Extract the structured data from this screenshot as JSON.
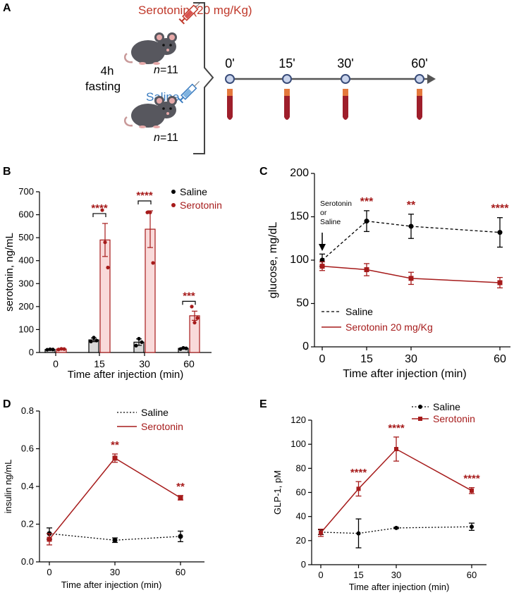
{
  "colors": {
    "saline": "#000000",
    "serotonin": "#a61b1b",
    "serotonin_text": "#c0392b",
    "saline_text": "#3a7cc0",
    "bar_saline_fill": "#d9d9d9",
    "bar_serotonin_fill": "#f9dada",
    "timeline": "#555555",
    "node_fill": "#c9d4ec",
    "node_stroke": "#3a4d7a",
    "mouse": "#57575e",
    "tube": "#9e1e2b",
    "cap": "#e4783c"
  },
  "panel_a": {
    "label": "A",
    "serotonin_label": "Serotonin (20 mg/Kg)",
    "saline_label": "Saline",
    "fasting_line1": "4h",
    "fasting_line2": "fasting",
    "n_italic": "n",
    "n_value": "=11",
    "timepoints": [
      "0'",
      "15'",
      "30'",
      "60'"
    ],
    "icons": [
      "mouse-icon",
      "syringe-icon",
      "blood-tube-icon"
    ]
  },
  "chart_data": [
    {
      "panel": "B",
      "type": "bar",
      "title": "",
      "xlabel": "Time after injection (min)",
      "ylabel": "serotonin, ng/mL",
      "categories": [
        "0",
        "15",
        "30",
        "60"
      ],
      "ylim": [
        0,
        700
      ],
      "yticks": [
        "0",
        "100",
        "200",
        "300",
        "400",
        "500",
        "600",
        "700"
      ],
      "legend": [
        "Saline",
        "Serotonin"
      ],
      "legend_position": "top-right",
      "series": [
        {
          "name": "Saline",
          "values": [
            13,
            55,
            45,
            18
          ],
          "errors": [
            2,
            8,
            14,
            3
          ],
          "points": [
            [
              12,
              14,
              13
            ],
            [
              48,
              65,
              52
            ],
            [
              30,
              60,
              45
            ],
            [
              15,
              20,
              18
            ]
          ]
        },
        {
          "name": "Serotonin",
          "values": [
            15,
            490,
            537,
            160
          ],
          "errors": [
            2,
            72,
            80,
            20
          ],
          "points": [
            [
              13,
              16,
              15
            ],
            [
              620,
              480,
              370
            ],
            [
              610,
              610,
              390
            ],
            [
              200,
              130,
              150
            ]
          ]
        }
      ],
      "significance": [
        "",
        "****",
        "****",
        "***"
      ]
    },
    {
      "panel": "C",
      "type": "line",
      "title": "",
      "xlabel": "Time after injection (min)",
      "ylabel": "glucose, mg/dL",
      "x": [
        0,
        15,
        30,
        60
      ],
      "xticks": [
        "0",
        "15",
        "30",
        "60"
      ],
      "ylim": [
        0,
        200
      ],
      "yticks": [
        "0",
        "50",
        "100",
        "150",
        "200"
      ],
      "legend_position": "bottom-left",
      "series": [
        {
          "name": "Saline",
          "values": [
            100,
            145,
            139,
            132
          ],
          "errors": [
            7,
            12,
            14,
            17
          ],
          "style": "dashed"
        },
        {
          "name": "Serotonin 20 mg/Kg",
          "values": [
            93,
            89,
            79,
            74
          ],
          "errors": [
            5,
            7,
            7,
            6
          ],
          "style": "solid"
        }
      ],
      "significance": [
        "",
        "***",
        "**",
        "****"
      ],
      "annotation": [
        "Serotonin",
        "or",
        "Saline"
      ]
    },
    {
      "panel": "D",
      "type": "line",
      "title": "",
      "xlabel": "Time after injection (min)",
      "ylabel": "insulin ng/mL",
      "x": [
        0,
        30,
        60
      ],
      "xticks": [
        "0",
        "30",
        "60"
      ],
      "ylim": [
        0,
        0.8
      ],
      "yticks": [
        "0.0",
        "0.2",
        "0.4",
        "0.6",
        "0.8"
      ],
      "legend_position": "top-right",
      "series": [
        {
          "name": "Saline",
          "values": [
            0.15,
            0.115,
            0.135
          ],
          "errors": [
            0.03,
            0.012,
            0.028
          ],
          "style": "dotted"
        },
        {
          "name": "Serotonin",
          "values": [
            0.12,
            0.55,
            0.34
          ],
          "errors": [
            0.03,
            0.022,
            0.012
          ],
          "style": "solid"
        }
      ],
      "significance": [
        "",
        "**",
        "**"
      ]
    },
    {
      "panel": "E",
      "type": "line",
      "title": "",
      "xlabel": "Time after injection (min)",
      "ylabel": "GLP-1, pM",
      "x": [
        0,
        15,
        30,
        60
      ],
      "xticks": [
        "0",
        "15",
        "30",
        "60"
      ],
      "ylim": [
        0,
        120
      ],
      "yticks": [
        "0",
        "20",
        "40",
        "60",
        "80",
        "100",
        "120"
      ],
      "legend_position": "top-right",
      "series": [
        {
          "name": "Saline",
          "values": [
            27,
            26,
            30.5,
            31.5
          ],
          "errors": [
            2,
            12,
            0.5,
            3
          ],
          "style": "dotted"
        },
        {
          "name": "Serotonin",
          "values": [
            26.5,
            63,
            96,
            61.5
          ],
          "errors": [
            3,
            6,
            10,
            2.5
          ],
          "style": "solid"
        }
      ],
      "significance": [
        "",
        "****",
        "****",
        "****"
      ]
    }
  ]
}
